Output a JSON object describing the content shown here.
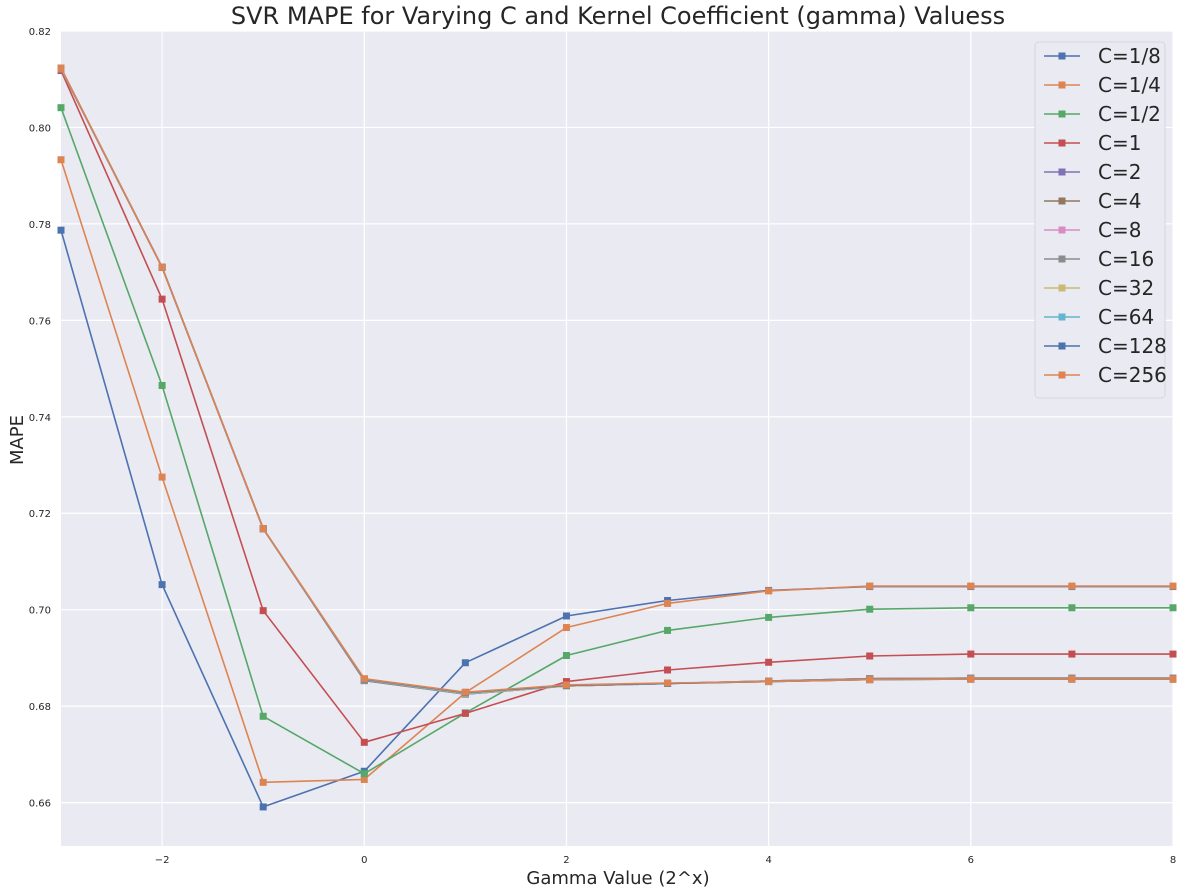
{
  "chart_data": {
    "type": "line",
    "title": "SVR MAPE for Varying C and Kernel Coefficient (gamma) Valuess",
    "xlabel": "Gamma Value (2^x)",
    "ylabel": "MAPE",
    "xlim": [
      -3,
      8
    ],
    "ylim": [
      0.651,
      0.82
    ],
    "x_ticks": [
      -2,
      0,
      2,
      4,
      6,
      8
    ],
    "y_ticks": [
      0.66,
      0.68,
      0.7,
      0.72,
      0.74,
      0.76,
      0.78,
      0.8,
      0.82
    ],
    "x_tick_labels": [
      "−2",
      "0",
      "2",
      "4",
      "6",
      "8"
    ],
    "y_tick_labels": [
      "0.66",
      "0.68",
      "0.70",
      "0.72",
      "0.74",
      "0.76",
      "0.78",
      "0.80",
      "0.82"
    ],
    "grid": true,
    "legend_position": "top-right",
    "background": "#eaeaf2",
    "marker": "square",
    "x": [
      -3,
      -2,
      -1,
      0,
      1,
      2,
      3,
      4,
      5,
      6,
      7,
      8
    ],
    "series": [
      {
        "name": "C=1/8",
        "color": "#4c72b0",
        "values": [
          0.7787,
          0.7052,
          0.6591,
          0.6665,
          0.689,
          0.6987,
          0.7019,
          0.704,
          0.7048,
          0.7048,
          0.7048,
          0.7048
        ]
      },
      {
        "name": "C=1/4",
        "color": "#dd8452",
        "values": [
          0.7933,
          0.7275,
          0.6642,
          0.6648,
          0.6828,
          0.6963,
          0.7013,
          0.7039,
          0.7049,
          0.7049,
          0.7049,
          0.7049
        ]
      },
      {
        "name": "C=1/2",
        "color": "#55a868",
        "values": [
          0.8041,
          0.7465,
          0.6779,
          0.666,
          0.6786,
          0.6905,
          0.6957,
          0.6984,
          0.7001,
          0.7004,
          0.7004,
          0.7004
        ]
      },
      {
        "name": "C=1",
        "color": "#c44e52",
        "values": [
          0.8118,
          0.7644,
          0.6998,
          0.6725,
          0.6785,
          0.6851,
          0.6875,
          0.6891,
          0.6904,
          0.6908,
          0.6908,
          0.6908
        ]
      },
      {
        "name": "C=2",
        "color": "#8172b3",
        "values": [
          0.8121,
          0.771,
          0.7168,
          0.6853,
          0.6825,
          0.6842,
          0.6847,
          0.6852,
          0.6857,
          0.6858,
          0.6858,
          0.6858
        ]
      },
      {
        "name": "C=4",
        "color": "#937860",
        "values": [
          0.8122,
          0.771,
          0.7168,
          0.6853,
          0.6825,
          0.6842,
          0.6847,
          0.6852,
          0.6857,
          0.6858,
          0.6858,
          0.6858
        ]
      },
      {
        "name": "C=8",
        "color": "#da8bc3",
        "values": [
          0.8122,
          0.771,
          0.7168,
          0.6854,
          0.6825,
          0.6842,
          0.6847,
          0.6852,
          0.6857,
          0.6858,
          0.6858,
          0.6858
        ]
      },
      {
        "name": "C=16",
        "color": "#8c8c8c",
        "values": [
          0.8122,
          0.771,
          0.7168,
          0.6854,
          0.6825,
          0.6842,
          0.6847,
          0.6852,
          0.6857,
          0.6858,
          0.6858,
          0.6858
        ]
      },
      {
        "name": "C=32",
        "color": "#ccb974",
        "values": [
          0.8122,
          0.771,
          0.7168,
          0.6855,
          0.6826,
          0.6842,
          0.6847,
          0.6851,
          0.6855,
          0.6856,
          0.6856,
          0.6856
        ]
      },
      {
        "name": "C=64",
        "color": "#64b5cd",
        "values": [
          0.8122,
          0.771,
          0.7168,
          0.6855,
          0.6827,
          0.6843,
          0.6847,
          0.6851,
          0.6855,
          0.6856,
          0.6856,
          0.6856
        ]
      },
      {
        "name": "C=128",
        "color": "#4c72b0",
        "values": [
          0.8123,
          0.771,
          0.7168,
          0.6856,
          0.6828,
          0.6843,
          0.6847,
          0.6851,
          0.6855,
          0.6856,
          0.6856,
          0.6856
        ]
      },
      {
        "name": "C=256",
        "color": "#dd8452",
        "values": [
          0.8123,
          0.771,
          0.7168,
          0.6857,
          0.6829,
          0.6844,
          0.6848,
          0.6851,
          0.6855,
          0.6856,
          0.6856,
          0.6856
        ]
      }
    ]
  }
}
